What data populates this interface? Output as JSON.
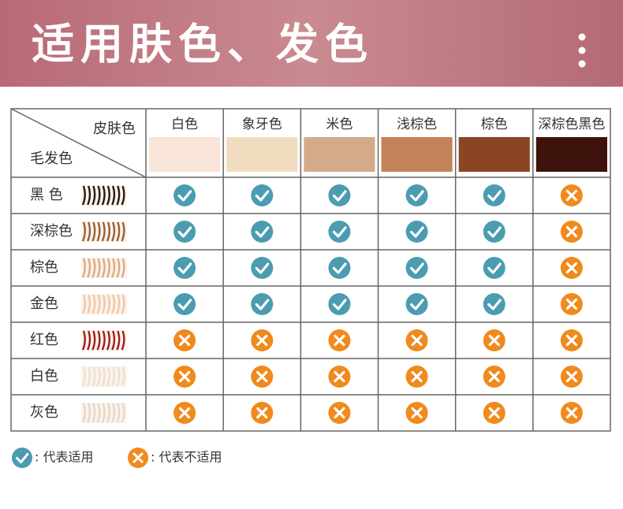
{
  "header": {
    "title": "适用肤色、发色"
  },
  "table": {
    "corner": {
      "skin": "皮肤色",
      "hair": "毛发色"
    },
    "columns": [
      {
        "label": "白色",
        "color": "#f9e6d8"
      },
      {
        "label": "象牙色",
        "color": "#f2dcc0"
      },
      {
        "label": "米色",
        "color": "#d3ab8a"
      },
      {
        "label": "浅棕色",
        "color": "#c4825a"
      },
      {
        "label": "棕色",
        "color": "#8a4524"
      },
      {
        "label": "深棕色黑色",
        "color": "#3e130c"
      }
    ],
    "rows": [
      {
        "label": "黑 色",
        "hair_color": "#2a1a10",
        "suitable": [
          true,
          true,
          true,
          true,
          true,
          false
        ]
      },
      {
        "label": "深棕色",
        "hair_color": "#9a6030",
        "suitable": [
          true,
          true,
          true,
          true,
          true,
          false
        ]
      },
      {
        "label": "棕色",
        "hair_color": "#dcac7c",
        "suitable": [
          true,
          true,
          true,
          true,
          true,
          false
        ]
      },
      {
        "label": "金色",
        "hair_color": "#f0c8a0",
        "suitable": [
          true,
          true,
          true,
          true,
          true,
          false
        ]
      },
      {
        "label": "红色",
        "hair_color": "#a01e1e",
        "suitable": [
          false,
          false,
          false,
          false,
          false,
          false
        ]
      },
      {
        "label": "白色",
        "hair_color": "#eedfcf",
        "suitable": [
          false,
          false,
          false,
          false,
          false,
          false
        ]
      },
      {
        "label": "灰色",
        "hair_color": "#e6d8c6",
        "suitable": [
          false,
          false,
          false,
          false,
          false,
          false
        ]
      }
    ]
  },
  "legend": [
    {
      "label": ": 代表适用",
      "suitable": true
    },
    {
      "label": ": 代表不适用",
      "suitable": false
    }
  ]
}
